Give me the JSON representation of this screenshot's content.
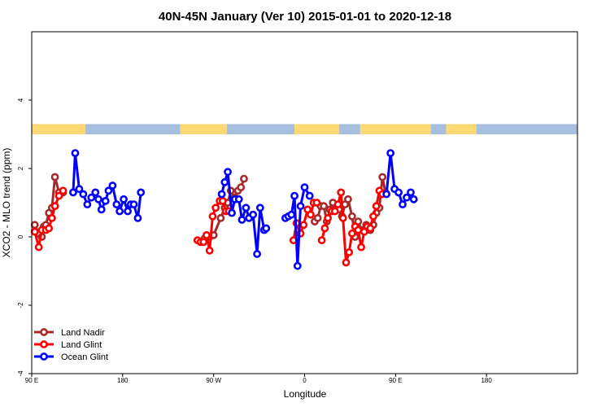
{
  "chart_data": {
    "type": "line",
    "title": "40N-45N January (Ver 10)   2015-01-01 to 2020-12-18",
    "xlabel": "Longitude",
    "ylabel": "XCO2 - MLO trend (ppm)",
    "xlim": [
      90,
      630
    ],
    "ylim": [
      -4,
      6
    ],
    "x_ticks": [
      {
        "value": 90,
        "label": "90 E"
      },
      {
        "value": 180,
        "label": "180"
      },
      {
        "value": 270,
        "label": "90 W"
      },
      {
        "value": 360,
        "label": "0"
      },
      {
        "value": 450,
        "label": "90 E"
      },
      {
        "value": 540,
        "label": "180"
      }
    ],
    "y_ticks": [
      {
        "value": -4,
        "label": "-4"
      },
      {
        "value": -2,
        "label": "-2"
      },
      {
        "value": 0,
        "label": "0"
      },
      {
        "value": 2,
        "label": "2"
      },
      {
        "value": 4,
        "label": "4"
      }
    ],
    "legend_position": "bottom-left",
    "land_mask": {
      "y_range": [
        3.0,
        3.3
      ],
      "land_color": "#fdd976",
      "ocean_color": "#a7bfde",
      "segments": [
        {
          "start": 90,
          "end": 143,
          "kind": "land"
        },
        {
          "start": 143,
          "end": 237,
          "kind": "ocean"
        },
        {
          "start": 237,
          "end": 283,
          "kind": "land"
        },
        {
          "start": 283,
          "end": 350,
          "kind": "ocean"
        },
        {
          "start": 350,
          "end": 394,
          "kind": "land"
        },
        {
          "start": 394,
          "end": 415,
          "kind": "ocean"
        },
        {
          "start": 415,
          "end": 485,
          "kind": "land"
        },
        {
          "start": 485,
          "end": 500,
          "kind": "ocean"
        },
        {
          "start": 500,
          "end": 530,
          "kind": "land"
        },
        {
          "start": 530,
          "end": 630,
          "kind": "ocean"
        }
      ]
    },
    "series": [
      {
        "name": "Land Nadir",
        "color": "#a52a2a",
        "segments": [
          [
            [
              93,
              0.35
            ],
            [
              97,
              0.1
            ],
            [
              100,
              0.0
            ],
            [
              102,
              0.3
            ],
            [
              104,
              0.35
            ],
            [
              107,
              0.7
            ],
            [
              110,
              0.85
            ],
            [
              113,
              1.75
            ],
            [
              117,
              1.3
            ],
            [
              121,
              1.3
            ]
          ],
          [
            [
              261,
              -0.05
            ],
            [
              266,
              0.0
            ],
            [
              270,
              0.05
            ],
            [
              277,
              0.55
            ],
            [
              281,
              0.85
            ],
            [
              284,
              1.0
            ],
            [
              287,
              1.35
            ],
            [
              291,
              1.15
            ],
            [
              294,
              1.35
            ],
            [
              297,
              1.45
            ],
            [
              300,
              1.7
            ]
          ],
          [
            [
              370,
              0.45
            ],
            [
              373,
              0.55
            ],
            [
              376,
              0.9
            ],
            [
              379,
              0.9
            ],
            [
              382,
              0.45
            ],
            [
              385,
              0.8
            ],
            [
              388,
              1.0
            ],
            [
              391,
              0.8
            ],
            [
              394,
              0.8
            ],
            [
              397,
              0.6
            ],
            [
              400,
              0.95
            ],
            [
              403,
              1.1
            ],
            [
              407,
              0.6
            ],
            [
              410,
              0.0
            ],
            [
              413,
              0.45
            ],
            [
              416,
              0.2
            ],
            [
              418,
              0.2
            ],
            [
              421,
              0.35
            ],
            [
              425,
              0.2
            ],
            [
              428,
              0.35
            ],
            [
              431,
              0.7
            ],
            [
              434,
              0.85
            ],
            [
              437,
              1.75
            ],
            [
              440,
              1.3
            ]
          ]
        ]
      },
      {
        "name": "Land Glint",
        "color": "#ff0000",
        "segments": [
          [
            [
              93,
              0.15
            ],
            [
              97,
              -0.3
            ],
            [
              100,
              0.2
            ],
            [
              104,
              0.2
            ],
            [
              107,
              0.25
            ],
            [
              110,
              0.55
            ],
            [
              113,
              0.9
            ],
            [
              117,
              1.2
            ],
            [
              121,
              1.35
            ]
          ],
          [
            [
              254,
              -0.1
            ],
            [
              257,
              -0.15
            ],
            [
              260,
              -0.15
            ],
            [
              263,
              0.05
            ],
            [
              266,
              -0.4
            ],
            [
              269,
              0.6
            ],
            [
              272,
              0.85
            ],
            [
              276,
              1.05
            ],
            [
              279,
              1.05
            ],
            [
              282,
              0.75
            ],
            [
              285,
              0.75
            ]
          ],
          [
            [
              349,
              -0.1
            ],
            [
              352,
              0.4
            ],
            [
              356,
              0.1
            ],
            [
              359,
              0.35
            ],
            [
              363,
              0.8
            ],
            [
              366,
              0.65
            ],
            [
              369,
              1.0
            ],
            [
              372,
              1.0
            ]
          ],
          [
            [
              377,
              -0.1
            ],
            [
              380,
              0.25
            ],
            [
              383,
              0.55
            ],
            [
              387,
              0.75
            ],
            [
              390,
              0.75
            ],
            [
              393,
              0.95
            ],
            [
              396,
              1.3
            ],
            [
              398,
              0.55
            ],
            [
              401,
              -0.75
            ],
            [
              404,
              -0.45
            ],
            [
              407,
              0.1
            ],
            [
              410,
              0.3
            ],
            [
              413,
              0.2
            ],
            [
              416,
              -0.3
            ],
            [
              419,
              0.15
            ],
            [
              422,
              0.3
            ],
            [
              425,
              0.25
            ],
            [
              428,
              0.6
            ],
            [
              431,
              0.9
            ],
            [
              434,
              1.35
            ],
            [
              437,
              1.25
            ]
          ]
        ]
      },
      {
        "name": "Ocean Glint",
        "color": "#0000ff",
        "segments": [
          [
            [
              131,
              1.3
            ],
            [
              133,
              2.45
            ],
            [
              137,
              1.4
            ],
            [
              141,
              1.25
            ],
            [
              145,
              0.95
            ],
            [
              149,
              1.15
            ],
            [
              153,
              1.3
            ],
            [
              156,
              1.1
            ],
            [
              159,
              0.8
            ],
            [
              163,
              1.05
            ],
            [
              166,
              1.35
            ],
            [
              170,
              1.5
            ],
            [
              174,
              0.95
            ],
            [
              177,
              0.75
            ],
            [
              181,
              1.1
            ],
            [
              185,
              0.75
            ],
            [
              188,
              0.95
            ],
            [
              191,
              0.95
            ],
            [
              195,
              0.55
            ],
            [
              198,
              1.3
            ]
          ],
          [
            [
              278,
              1.25
            ],
            [
              281,
              1.6
            ],
            [
              284,
              1.9
            ],
            [
              288,
              0.7
            ],
            [
              291,
              1.1
            ],
            [
              295,
              1.1
            ],
            [
              298,
              0.5
            ],
            [
              302,
              0.85
            ],
            [
              305,
              0.55
            ],
            [
              309,
              0.65
            ],
            [
              313,
              -0.5
            ],
            [
              316,
              0.85
            ],
            [
              320,
              0.2
            ],
            [
              322,
              0.25
            ]
          ],
          [
            [
              341,
              0.55
            ],
            [
              344,
              0.6
            ],
            [
              347,
              0.65
            ],
            [
              350,
              1.2
            ],
            [
              353,
              -0.85
            ],
            [
              356,
              0.9
            ],
            [
              360,
              1.45
            ],
            [
              365,
              1.2
            ]
          ],
          [
            [
              441,
              1.25
            ],
            [
              445,
              2.45
            ],
            [
              449,
              1.4
            ],
            [
              453,
              1.3
            ],
            [
              457,
              0.95
            ],
            [
              461,
              1.15
            ],
            [
              465,
              1.3
            ],
            [
              468,
              1.1
            ]
          ]
        ]
      }
    ]
  }
}
